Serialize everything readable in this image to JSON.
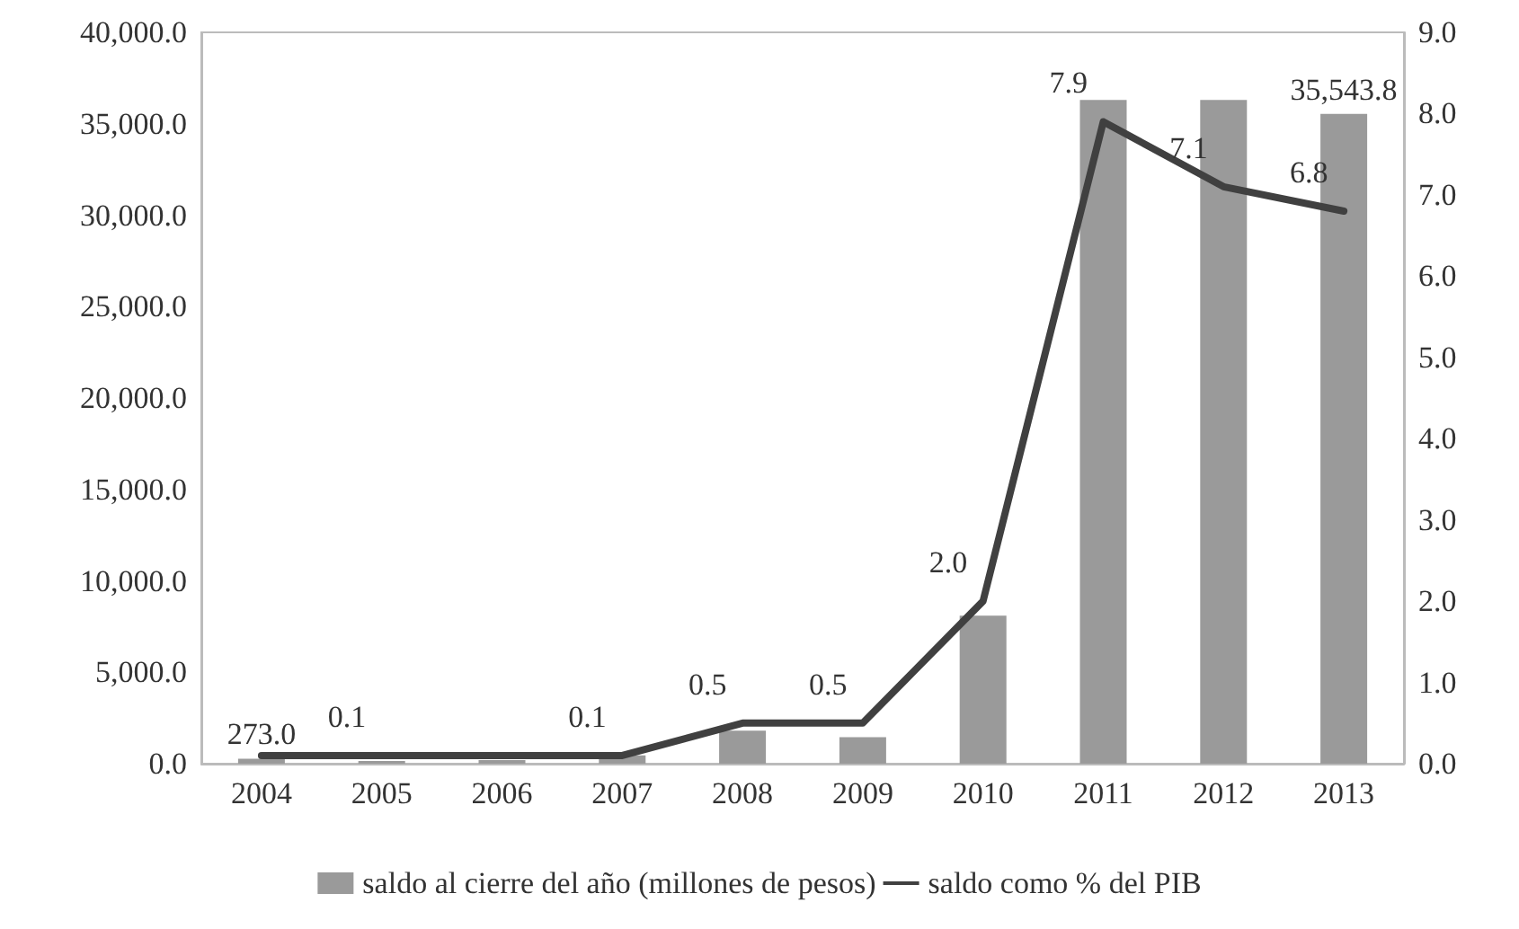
{
  "chart_data": {
    "type": "bar",
    "categories": [
      "2004",
      "2005",
      "2006",
      "2007",
      "2008",
      "2009",
      "2010",
      "2011",
      "2012",
      "2013"
    ],
    "series": [
      {
        "name": "saldo al cierre del año (millones de pesos)",
        "color": "#9a9a9a",
        "values": [
          273.0,
          150,
          200,
          450,
          1800,
          1450,
          8100,
          36300,
          36300,
          35543.8
        ],
        "value_labels": [
          "273.0",
          null,
          null,
          null,
          null,
          null,
          null,
          null,
          null,
          "35,543.8"
        ]
      },
      {
        "name": "saldo como % del PIB",
        "type": "line",
        "axis": "y2",
        "color": "#404040",
        "values": [
          0.1,
          0.1,
          0.1,
          0.1,
          0.5,
          0.5,
          2.0,
          7.9,
          7.1,
          6.8
        ],
        "value_labels": [
          null,
          "0.1",
          null,
          "0.1",
          "0.5",
          "0.5",
          "2.0",
          "7.9",
          "7.1",
          "6.8"
        ]
      }
    ],
    "ylim": [
      0,
      40000
    ],
    "yticks": [
      {
        "value": 0,
        "label": "0.0"
      },
      {
        "value": 5000,
        "label": "5,000.0"
      },
      {
        "value": 10000,
        "label": "10,000.0"
      },
      {
        "value": 15000,
        "label": "15,000.0"
      },
      {
        "value": 20000,
        "label": "20,000.0"
      },
      {
        "value": 25000,
        "label": "25,000.0"
      },
      {
        "value": 30000,
        "label": "30,000.0"
      },
      {
        "value": 35000,
        "label": "35,000.0"
      },
      {
        "value": 40000,
        "label": "40,000.0"
      }
    ],
    "y2lim": [
      0,
      9
    ],
    "y2ticks": [
      {
        "value": 0,
        "label": "0.0"
      },
      {
        "value": 1,
        "label": "1.0"
      },
      {
        "value": 2,
        "label": "2.0"
      },
      {
        "value": 3,
        "label": "3.0"
      },
      {
        "value": 4,
        "label": "4.0"
      },
      {
        "value": 5,
        "label": "5.0"
      },
      {
        "value": 6,
        "label": "6.0"
      },
      {
        "value": 7,
        "label": "7.0"
      },
      {
        "value": 8,
        "label": "8.0"
      },
      {
        "value": 9,
        "label": "9.0"
      }
    ],
    "grid": false,
    "legend": "bottom",
    "marker": "none"
  }
}
